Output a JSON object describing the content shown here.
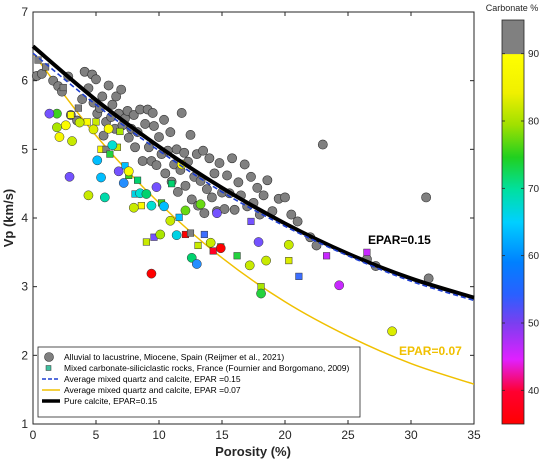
{
  "chart_data": {
    "type": "scatter",
    "xlabel": "Porosity (%)",
    "ylabel": "Vp (km/s)",
    "xlim": [
      0,
      35
    ],
    "ylim": [
      1,
      7
    ],
    "xticks": [
      "0",
      "5",
      "10",
      "15",
      "20",
      "25",
      "30",
      "35"
    ],
    "yticks": [
      "1",
      "2",
      "3",
      "4",
      "5",
      "6",
      "7"
    ],
    "grid": false,
    "legend_position": "bottom-left",
    "colorbar": {
      "title": "Carbonate %",
      "range": [
        35,
        95
      ],
      "ticks": [
        "40",
        "50",
        "60",
        "70",
        "80",
        "90"
      ]
    },
    "annotations": [
      {
        "text": "EPAR=0.15",
        "color": "#000000",
        "x": 26.8,
        "y": 3.92
      },
      {
        "text": "EPAR=0.07",
        "color": "#f0c000",
        "x": 31.0,
        "y": 2.05
      }
    ],
    "series": [
      {
        "name": "Alluvial to lacustrine, Miocene, Spain (Reijmer et al., 2021)",
        "marker": "circle",
        "color": "#808080",
        "points": [
          [
            0.3,
            6.07
          ],
          [
            0.7,
            6.1
          ],
          [
            1.6,
            6.0
          ],
          [
            2.0,
            5.92
          ],
          [
            2.3,
            5.84
          ],
          [
            2.8,
            6.06
          ],
          [
            3.0,
            5.5
          ],
          [
            3.5,
            5.42
          ],
          [
            3.9,
            5.73
          ],
          [
            4.1,
            6.13
          ],
          [
            4.4,
            5.89
          ],
          [
            4.7,
            6.09
          ],
          [
            4.8,
            5.68
          ],
          [
            5.0,
            6.02
          ],
          [
            5.1,
            5.52
          ],
          [
            5.3,
            5.6
          ],
          [
            5.5,
            5.77
          ],
          [
            5.6,
            5.2
          ],
          [
            5.8,
            5.4
          ],
          [
            6.0,
            5.93
          ],
          [
            6.2,
            5.47
          ],
          [
            6.3,
            5.65
          ],
          [
            6.5,
            5.3
          ],
          [
            6.6,
            5.77
          ],
          [
            6.8,
            5.52
          ],
          [
            7.0,
            5.87
          ],
          [
            7.1,
            5.35
          ],
          [
            7.3,
            5.45
          ],
          [
            7.5,
            5.56
          ],
          [
            7.6,
            5.17
          ],
          [
            7.8,
            5.3
          ],
          [
            8.0,
            5.5
          ],
          [
            8.1,
            5.03
          ],
          [
            8.3,
            5.25
          ],
          [
            8.5,
            5.58
          ],
          [
            8.7,
            4.83
          ],
          [
            8.9,
            5.37
          ],
          [
            9.1,
            5.58
          ],
          [
            9.2,
            5.03
          ],
          [
            9.4,
            4.83
          ],
          [
            9.5,
            5.53
          ],
          [
            9.6,
            5.34
          ],
          [
            9.8,
            4.77
          ],
          [
            10.0,
            5.18
          ],
          [
            10.2,
            4.93
          ],
          [
            10.4,
            5.43
          ],
          [
            10.5,
            4.65
          ],
          [
            10.7,
            4.98
          ],
          [
            10.9,
            5.25
          ],
          [
            11.0,
            4.53
          ],
          [
            11.2,
            4.78
          ],
          [
            11.4,
            5.0
          ],
          [
            11.5,
            4.38
          ],
          [
            11.7,
            4.7
          ],
          [
            11.8,
            5.53
          ],
          [
            12.0,
            4.95
          ],
          [
            12.1,
            4.47
          ],
          [
            12.3,
            4.82
          ],
          [
            12.5,
            5.21
          ],
          [
            12.6,
            4.27
          ],
          [
            12.8,
            4.6
          ],
          [
            13.0,
            4.93
          ],
          [
            13.1,
            4.18
          ],
          [
            13.3,
            4.54
          ],
          [
            13.5,
            4.98
          ],
          [
            13.6,
            4.07
          ],
          [
            13.8,
            4.42
          ],
          [
            14.0,
            4.87
          ],
          [
            14.2,
            4.3
          ],
          [
            14.4,
            4.65
          ],
          [
            14.6,
            4.1
          ],
          [
            14.8,
            4.8
          ],
          [
            15.0,
            4.37
          ],
          [
            15.2,
            4.13
          ],
          [
            15.4,
            4.62
          ],
          [
            15.6,
            4.36
          ],
          [
            15.8,
            4.87
          ],
          [
            16.0,
            4.12
          ],
          [
            16.3,
            4.52
          ],
          [
            16.5,
            4.33
          ],
          [
            16.8,
            4.78
          ],
          [
            17.0,
            4.17
          ],
          [
            17.3,
            4.6
          ],
          [
            17.5,
            4.22
          ],
          [
            17.8,
            4.44
          ],
          [
            18.0,
            4.05
          ],
          [
            18.3,
            4.33
          ],
          [
            18.6,
            4.55
          ],
          [
            19.0,
            4.1
          ],
          [
            19.5,
            4.28
          ],
          [
            20.0,
            4.3
          ],
          [
            20.5,
            4.05
          ],
          [
            21.0,
            3.95
          ],
          [
            22.0,
            3.72
          ],
          [
            22.5,
            3.6
          ],
          [
            23.0,
            5.07
          ],
          [
            26.5,
            3.4
          ],
          [
            27.2,
            3.3
          ],
          [
            31.2,
            4.3
          ],
          [
            31.4,
            3.12
          ]
        ]
      },
      {
        "name": "Mixed carbonate-siliciclastic rocks, France (Fournier and Borgomano, 2009)",
        "marker": "square",
        "color": "#40c0a0",
        "points": [
          [
            0.4,
            6.3,
            90
          ],
          [
            1.0,
            6.2,
            90
          ],
          [
            2.4,
            5.9,
            90
          ],
          [
            3.0,
            5.5,
            88
          ],
          [
            3.6,
            5.6,
            90
          ],
          [
            4.3,
            5.4,
            88
          ],
          [
            5.0,
            5.4,
            78
          ],
          [
            5.4,
            5.0,
            85
          ],
          [
            5.8,
            5.0,
            90
          ],
          [
            6.1,
            4.93,
            68
          ],
          [
            6.7,
            5.03,
            78
          ],
          [
            6.9,
            5.26,
            75
          ],
          [
            7.3,
            4.76,
            55
          ],
          [
            7.6,
            4.62,
            70
          ],
          [
            8.1,
            4.35,
            58
          ],
          [
            8.3,
            4.55,
            65
          ],
          [
            8.6,
            4.18,
            88
          ],
          [
            9.0,
            3.65,
            78
          ],
          [
            9.6,
            3.72,
            48
          ],
          [
            10.2,
            4.22,
            70
          ],
          [
            11.0,
            4.5,
            65
          ],
          [
            11.6,
            4.01,
            55
          ],
          [
            12.1,
            3.76,
            22
          ],
          [
            12.5,
            3.78,
            90
          ],
          [
            13.1,
            3.6,
            78
          ],
          [
            13.6,
            3.76,
            50
          ],
          [
            14.3,
            3.52,
            38
          ],
          [
            14.9,
            3.58,
            72
          ],
          [
            16.2,
            3.45,
            68
          ],
          [
            17.3,
            3.95,
            48
          ],
          [
            18.1,
            3.0,
            75
          ],
          [
            20.3,
            3.38,
            80
          ],
          [
            21.1,
            3.15,
            50
          ],
          [
            23.3,
            3.45,
            45
          ],
          [
            26.5,
            3.5,
            45
          ]
        ]
      },
      {
        "name": "Mixed carbonate-siliciclastic rocks, France (Fournier and Borgomano, 2009)",
        "marker": "circle",
        "color": "#40c0a0",
        "points": [
          [
            3.7,
            5.39,
            78
          ],
          [
            4.4,
            4.33,
            78
          ],
          [
            4.8,
            5.29,
            80
          ],
          [
            5.1,
            4.84,
            55
          ],
          [
            5.4,
            4.59,
            55
          ],
          [
            5.7,
            4.3,
            62
          ],
          [
            6.0,
            5.3,
            88
          ],
          [
            6.3,
            5.06,
            60
          ],
          [
            6.8,
            4.68,
            48
          ],
          [
            7.2,
            4.51,
            52
          ],
          [
            7.6,
            4.68,
            88
          ],
          [
            8.0,
            4.15,
            78
          ],
          [
            8.5,
            4.36,
            60
          ],
          [
            9.0,
            4.35,
            65
          ],
          [
            9.4,
            4.18,
            60
          ],
          [
            9.8,
            4.45,
            48
          ],
          [
            10.4,
            4.17,
            55
          ],
          [
            10.9,
            3.96,
            78
          ],
          [
            11.4,
            3.75,
            58
          ],
          [
            12.1,
            4.11,
            72
          ],
          [
            12.6,
            3.42,
            65
          ],
          [
            13.0,
            3.33,
            52
          ],
          [
            13.3,
            4.2,
            72
          ],
          [
            14.1,
            3.64,
            78
          ],
          [
            14.6,
            4.07,
            48
          ],
          [
            14.9,
            3.56,
            22
          ],
          [
            17.2,
            3.31,
            78
          ],
          [
            17.9,
            3.65,
            48
          ],
          [
            18.5,
            3.38,
            78
          ],
          [
            18.1,
            2.9,
            68
          ],
          [
            20.3,
            3.61,
            78
          ],
          [
            24.3,
            3.02,
            45
          ],
          [
            28.5,
            2.35,
            80
          ],
          [
            9.4,
            3.19,
            18
          ],
          [
            10.1,
            3.76,
            75
          ],
          [
            11.8,
            4.78,
            88
          ],
          [
            2.1,
            5.18,
            85
          ],
          [
            2.6,
            5.35,
            88
          ],
          [
            1.9,
            5.52,
            70
          ],
          [
            1.3,
            5.52,
            48
          ],
          [
            2.9,
            4.6,
            48
          ],
          [
            1.9,
            5.32,
            75
          ],
          [
            3.1,
            5.12,
            78
          ]
        ]
      },
      {
        "name": "Average mixed quartz and calcite, EPAR =0.15",
        "marker": "dashed-line",
        "color": "#1f3fd0",
        "x": [
          0,
          5,
          10,
          15,
          20,
          25,
          30,
          35
        ],
        "y": [
          6.4,
          5.65,
          4.98,
          4.38,
          3.88,
          3.45,
          3.08,
          2.8
        ]
      },
      {
        "name": "Average mixed quartz and calcite, EPAR =0.07",
        "marker": "line",
        "color": "#f0c000",
        "x": [
          0,
          5,
          10,
          15,
          20,
          25,
          30,
          35
        ],
        "y": [
          6.4,
          5.2,
          4.22,
          3.42,
          2.78,
          2.28,
          1.88,
          1.58
        ]
      },
      {
        "name": "Pure calcite, EPAR=0.15",
        "marker": "thick-line",
        "color": "#000000",
        "x": [
          0,
          5,
          10,
          15,
          20,
          25,
          30,
          35
        ],
        "y": [
          6.5,
          5.72,
          5.04,
          4.44,
          3.92,
          3.48,
          3.12,
          2.84
        ]
      }
    ]
  }
}
